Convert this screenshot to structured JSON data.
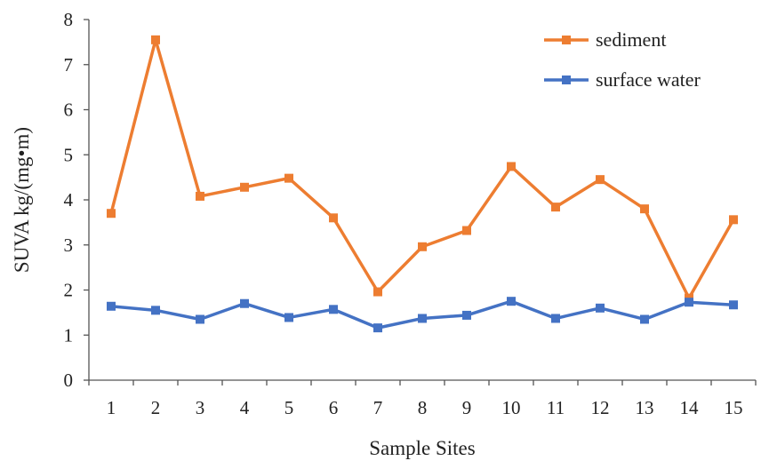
{
  "chart_data": {
    "type": "line",
    "xlabel": "Sample Sites",
    "ylabel": "SUVA  kg/(mg•m)",
    "categories": [
      "1",
      "2",
      "3",
      "4",
      "5",
      "6",
      "7",
      "8",
      "9",
      "10",
      "11",
      "12",
      "13",
      "14",
      "15"
    ],
    "ylim": [
      0,
      8
    ],
    "yticks": [
      0,
      1,
      2,
      3,
      4,
      5,
      6,
      7,
      8
    ],
    "grid": false,
    "legend_position": "top-right",
    "series": [
      {
        "name": "sediment",
        "color": "#ED7D31",
        "marker": "square",
        "values": [
          3.7,
          7.55,
          4.08,
          4.28,
          4.48,
          3.6,
          1.96,
          2.96,
          3.32,
          4.74,
          3.84,
          4.45,
          3.8,
          1.82,
          3.56
        ]
      },
      {
        "name": "surface water",
        "color": "#4472C4",
        "marker": "square",
        "values": [
          1.64,
          1.55,
          1.35,
          1.7,
          1.39,
          1.57,
          1.16,
          1.37,
          1.44,
          1.75,
          1.37,
          1.6,
          1.35,
          1.73,
          1.67
        ]
      }
    ]
  }
}
